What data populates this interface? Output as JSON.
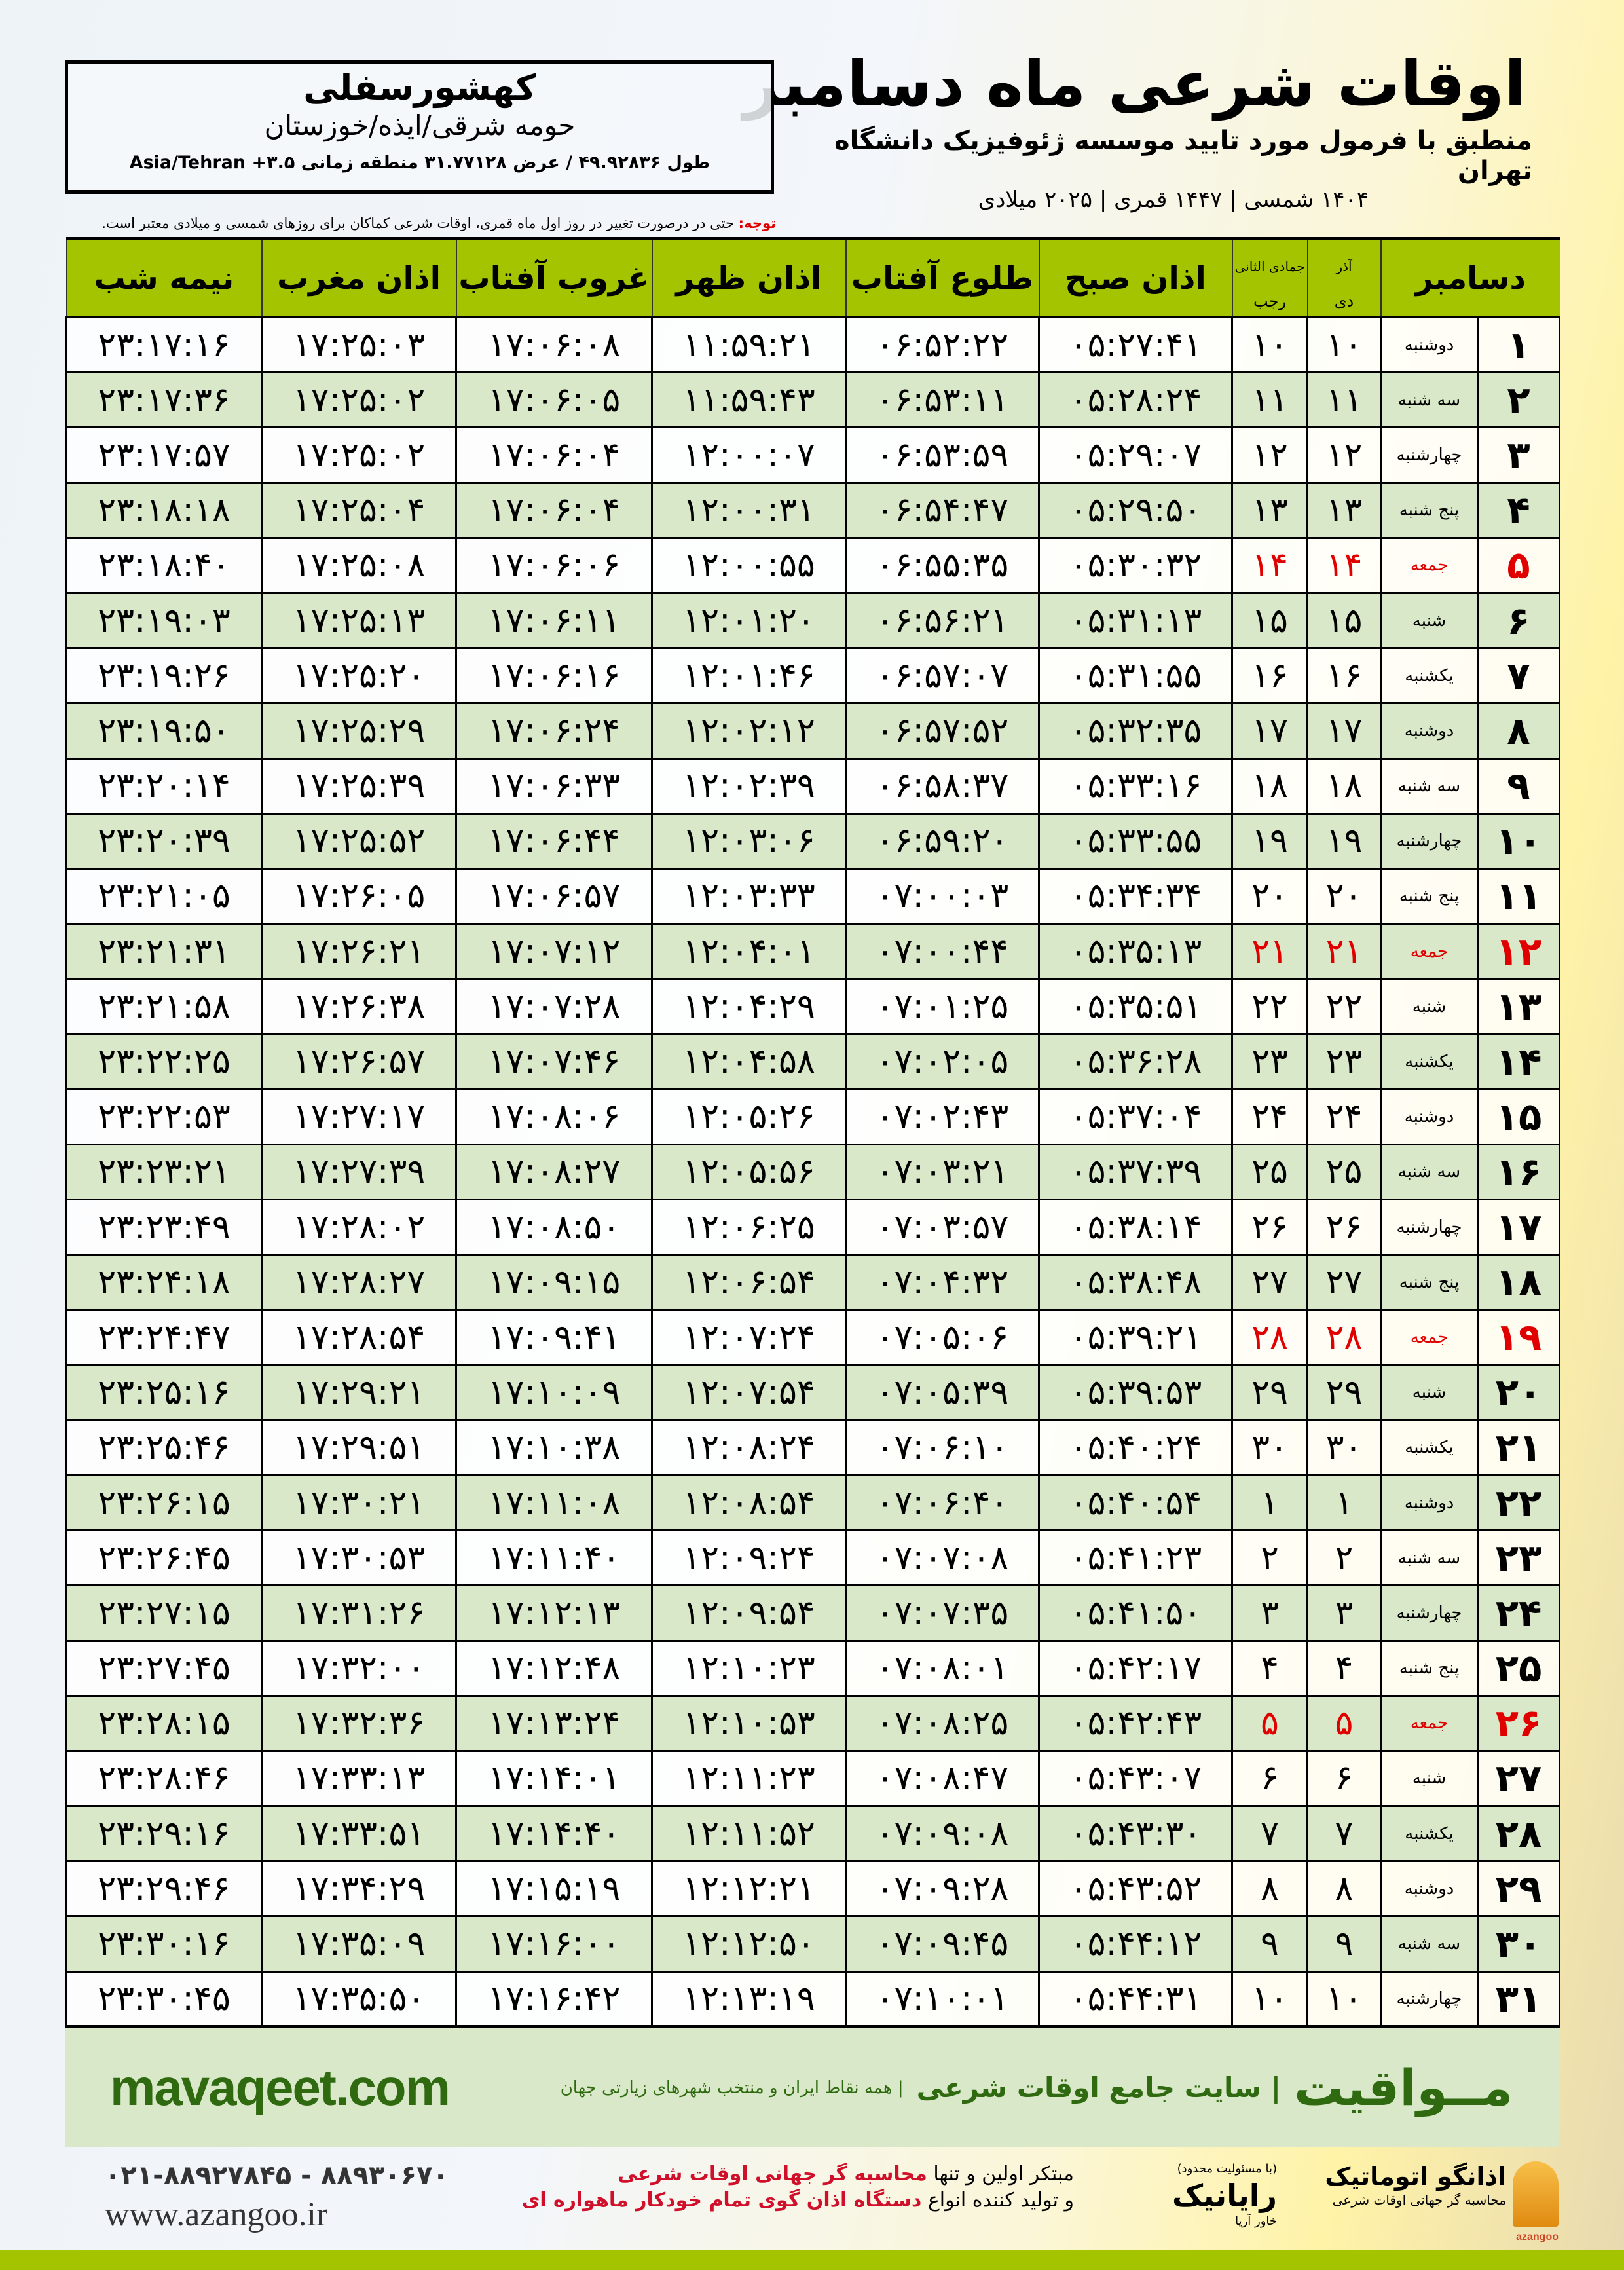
{
  "header": {
    "title": "اوقات شرعی ماه دسامبر",
    "subtitle": "منطبق با فرمول مورد تایید موسسه ژئوفیزیک دانشگاه تهران",
    "years": "۱۴۰۴ شمسی | ۱۴۴۷ قمری | ۲۰۲۵ میلادی"
  },
  "location": {
    "city": "کهشورسفلی",
    "region": "حومه شرقی/ایذه/خوزستان",
    "coords": "طول ۴۹.۹۲۸۳۶ / عرض ۳۱.۷۷۱۲۸ منطقه زمانی ۳.۵+ Asia/Tehran"
  },
  "note": {
    "label": "توجه:",
    "text": " حتی در درصورت تغییر در روز اول ماه قمری، اوقات شرعی کماکان برای روزهای شمسی و میلادی معتبر است."
  },
  "table": {
    "headers": {
      "month": "دسامبر",
      "shamsi_top": "آذر",
      "shamsi_bottom": "دی",
      "qamari_top": "جمادی الثانی",
      "qamari_bottom": "رجب",
      "fajr": "اذان صبح",
      "sunrise": "طلوع آفتاب",
      "dhuhr": "اذان ظهر",
      "sunset": "غروب آفتاب",
      "maghrib": "اذان مغرب",
      "midnight": "نیمه شب"
    },
    "holiday_color": "#e00000",
    "rows": [
      [
        "۱",
        "دوشنبه",
        "۱۰",
        "۱۰",
        "۰۵:۲۷:۴۱",
        "۰۶:۵۲:۲۲",
        "۱۱:۵۹:۲۱",
        "۱۷:۰۶:۰۸",
        "۱۷:۲۵:۰۳",
        "۲۳:۱۷:۱۶",
        false
      ],
      [
        "۲",
        "سه شنبه",
        "۱۱",
        "۱۱",
        "۰۵:۲۸:۲۴",
        "۰۶:۵۳:۱۱",
        "۱۱:۵۹:۴۳",
        "۱۷:۰۶:۰۵",
        "۱۷:۲۵:۰۲",
        "۲۳:۱۷:۳۶",
        false
      ],
      [
        "۳",
        "چهارشنبه",
        "۱۲",
        "۱۲",
        "۰۵:۲۹:۰۷",
        "۰۶:۵۳:۵۹",
        "۱۲:۰۰:۰۷",
        "۱۷:۰۶:۰۴",
        "۱۷:۲۵:۰۲",
        "۲۳:۱۷:۵۷",
        false
      ],
      [
        "۴",
        "پنج شنبه",
        "۱۳",
        "۱۳",
        "۰۵:۲۹:۵۰",
        "۰۶:۵۴:۴۷",
        "۱۲:۰۰:۳۱",
        "۱۷:۰۶:۰۴",
        "۱۷:۲۵:۰۴",
        "۲۳:۱۸:۱۸",
        false
      ],
      [
        "۵",
        "جمعه",
        "۱۴",
        "۱۴",
        "۰۵:۳۰:۳۲",
        "۰۶:۵۵:۳۵",
        "۱۲:۰۰:۵۵",
        "۱۷:۰۶:۰۶",
        "۱۷:۲۵:۰۸",
        "۲۳:۱۸:۴۰",
        true
      ],
      [
        "۶",
        "شنبه",
        "۱۵",
        "۱۵",
        "۰۵:۳۱:۱۳",
        "۰۶:۵۶:۲۱",
        "۱۲:۰۱:۲۰",
        "۱۷:۰۶:۱۱",
        "۱۷:۲۵:۱۳",
        "۲۳:۱۹:۰۳",
        false
      ],
      [
        "۷",
        "یکشنبه",
        "۱۶",
        "۱۶",
        "۰۵:۳۱:۵۵",
        "۰۶:۵۷:۰۷",
        "۱۲:۰۱:۴۶",
        "۱۷:۰۶:۱۶",
        "۱۷:۲۵:۲۰",
        "۲۳:۱۹:۲۶",
        false
      ],
      [
        "۸",
        "دوشنبه",
        "۱۷",
        "۱۷",
        "۰۵:۳۲:۳۵",
        "۰۶:۵۷:۵۲",
        "۱۲:۰۲:۱۲",
        "۱۷:۰۶:۲۴",
        "۱۷:۲۵:۲۹",
        "۲۳:۱۹:۵۰",
        false
      ],
      [
        "۹",
        "سه شنبه",
        "۱۸",
        "۱۸",
        "۰۵:۳۳:۱۶",
        "۰۶:۵۸:۳۷",
        "۱۲:۰۲:۳۹",
        "۱۷:۰۶:۳۳",
        "۱۷:۲۵:۳۹",
        "۲۳:۲۰:۱۴",
        false
      ],
      [
        "۱۰",
        "چهارشنبه",
        "۱۹",
        "۱۹",
        "۰۵:۳۳:۵۵",
        "۰۶:۵۹:۲۰",
        "۱۲:۰۳:۰۶",
        "۱۷:۰۶:۴۴",
        "۱۷:۲۵:۵۲",
        "۲۳:۲۰:۳۹",
        false
      ],
      [
        "۱۱",
        "پنج شنبه",
        "۲۰",
        "۲۰",
        "۰۵:۳۴:۳۴",
        "۰۷:۰۰:۰۳",
        "۱۲:۰۳:۳۳",
        "۱۷:۰۶:۵۷",
        "۱۷:۲۶:۰۵",
        "۲۳:۲۱:۰۵",
        false
      ],
      [
        "۱۲",
        "جمعه",
        "۲۱",
        "۲۱",
        "۰۵:۳۵:۱۳",
        "۰۷:۰۰:۴۴",
        "۱۲:۰۴:۰۱",
        "۱۷:۰۷:۱۲",
        "۱۷:۲۶:۲۱",
        "۲۳:۲۱:۳۱",
        true
      ],
      [
        "۱۳",
        "شنبه",
        "۲۲",
        "۲۲",
        "۰۵:۳۵:۵۱",
        "۰۷:۰۱:۲۵",
        "۱۲:۰۴:۲۹",
        "۱۷:۰۷:۲۸",
        "۱۷:۲۶:۳۸",
        "۲۳:۲۱:۵۸",
        false
      ],
      [
        "۱۴",
        "یکشنبه",
        "۲۳",
        "۲۳",
        "۰۵:۳۶:۲۸",
        "۰۷:۰۲:۰۵",
        "۱۲:۰۴:۵۸",
        "۱۷:۰۷:۴۶",
        "۱۷:۲۶:۵۷",
        "۲۳:۲۲:۲۵",
        false
      ],
      [
        "۱۵",
        "دوشنبه",
        "۲۴",
        "۲۴",
        "۰۵:۳۷:۰۴",
        "۰۷:۰۲:۴۳",
        "۱۲:۰۵:۲۶",
        "۱۷:۰۸:۰۶",
        "۱۷:۲۷:۱۷",
        "۲۳:۲۲:۵۳",
        false
      ],
      [
        "۱۶",
        "سه شنبه",
        "۲۵",
        "۲۵",
        "۰۵:۳۷:۳۹",
        "۰۷:۰۳:۲۱",
        "۱۲:۰۵:۵۶",
        "۱۷:۰۸:۲۷",
        "۱۷:۲۷:۳۹",
        "۲۳:۲۳:۲۱",
        false
      ],
      [
        "۱۷",
        "چهارشنبه",
        "۲۶",
        "۲۶",
        "۰۵:۳۸:۱۴",
        "۰۷:۰۳:۵۷",
        "۱۲:۰۶:۲۵",
        "۱۷:۰۸:۵۰",
        "۱۷:۲۸:۰۲",
        "۲۳:۲۳:۴۹",
        false
      ],
      [
        "۱۸",
        "پنج شنبه",
        "۲۷",
        "۲۷",
        "۰۵:۳۸:۴۸",
        "۰۷:۰۴:۳۲",
        "۱۲:۰۶:۵۴",
        "۱۷:۰۹:۱۵",
        "۱۷:۲۸:۲۷",
        "۲۳:۲۴:۱۸",
        false
      ],
      [
        "۱۹",
        "جمعه",
        "۲۸",
        "۲۸",
        "۰۵:۳۹:۲۱",
        "۰۷:۰۵:۰۶",
        "۱۲:۰۷:۲۴",
        "۱۷:۰۹:۴۱",
        "۱۷:۲۸:۵۴",
        "۲۳:۲۴:۴۷",
        true
      ],
      [
        "۲۰",
        "شنبه",
        "۲۹",
        "۲۹",
        "۰۵:۳۹:۵۳",
        "۰۷:۰۵:۳۹",
        "۱۲:۰۷:۵۴",
        "۱۷:۱۰:۰۹",
        "۱۷:۲۹:۲۱",
        "۲۳:۲۵:۱۶",
        false
      ],
      [
        "۲۱",
        "یکشنبه",
        "۳۰",
        "۳۰",
        "۰۵:۴۰:۲۴",
        "۰۷:۰۶:۱۰",
        "۱۲:۰۸:۲۴",
        "۱۷:۱۰:۳۸",
        "۱۷:۲۹:۵۱",
        "۲۳:۲۵:۴۶",
        false
      ],
      [
        "۲۲",
        "دوشنبه",
        "۱",
        "۱",
        "۰۵:۴۰:۵۴",
        "۰۷:۰۶:۴۰",
        "۱۲:۰۸:۵۴",
        "۱۷:۱۱:۰۸",
        "۱۷:۳۰:۲۱",
        "۲۳:۲۶:۱۵",
        false
      ],
      [
        "۲۳",
        "سه شنبه",
        "۲",
        "۲",
        "۰۵:۴۱:۲۳",
        "۰۷:۰۷:۰۸",
        "۱۲:۰۹:۲۴",
        "۱۷:۱۱:۴۰",
        "۱۷:۳۰:۵۳",
        "۲۳:۲۶:۴۵",
        false
      ],
      [
        "۲۴",
        "چهارشنبه",
        "۳",
        "۳",
        "۰۵:۴۱:۵۰",
        "۰۷:۰۷:۳۵",
        "۱۲:۰۹:۵۴",
        "۱۷:۱۲:۱۳",
        "۱۷:۳۱:۲۶",
        "۲۳:۲۷:۱۵",
        false
      ],
      [
        "۲۵",
        "پنج شنبه",
        "۴",
        "۴",
        "۰۵:۴۲:۱۷",
        "۰۷:۰۸:۰۱",
        "۱۲:۱۰:۲۳",
        "۱۷:۱۲:۴۸",
        "۱۷:۳۲:۰۰",
        "۲۳:۲۷:۴۵",
        false
      ],
      [
        "۲۶",
        "جمعه",
        "۵",
        "۵",
        "۰۵:۴۲:۴۳",
        "۰۷:۰۸:۲۵",
        "۱۲:۱۰:۵۳",
        "۱۷:۱۳:۲۴",
        "۱۷:۳۲:۳۶",
        "۲۳:۲۸:۱۵",
        true
      ],
      [
        "۲۷",
        "شنبه",
        "۶",
        "۶",
        "۰۵:۴۳:۰۷",
        "۰۷:۰۸:۴۷",
        "۱۲:۱۱:۲۳",
        "۱۷:۱۴:۰۱",
        "۱۷:۳۳:۱۳",
        "۲۳:۲۸:۴۶",
        false
      ],
      [
        "۲۸",
        "یکشنبه",
        "۷",
        "۷",
        "۰۵:۴۳:۳۰",
        "۰۷:۰۹:۰۸",
        "۱۲:۱۱:۵۲",
        "۱۷:۱۴:۴۰",
        "۱۷:۳۳:۵۱",
        "۲۳:۲۹:۱۶",
        false
      ],
      [
        "۲۹",
        "دوشنبه",
        "۸",
        "۸",
        "۰۵:۴۳:۵۲",
        "۰۷:۰۹:۲۸",
        "۱۲:۱۲:۲۱",
        "۱۷:۱۵:۱۹",
        "۱۷:۳۴:۲۹",
        "۲۳:۲۹:۴۶",
        false
      ],
      [
        "۳۰",
        "سه شنبه",
        "۹",
        "۹",
        "۰۵:۴۴:۱۲",
        "۰۷:۰۹:۴۵",
        "۱۲:۱۲:۵۰",
        "۱۷:۱۶:۰۰",
        "۱۷:۳۵:۰۹",
        "۲۳:۳۰:۱۶",
        false
      ],
      [
        "۳۱",
        "چهارشنبه",
        "۱۰",
        "۱۰",
        "۰۵:۴۴:۳۱",
        "۰۷:۱۰:۰۱",
        "۱۲:۱۳:۱۹",
        "۱۷:۱۶:۴۲",
        "۱۷:۳۵:۵۰",
        "۲۳:۳۰:۴۵",
        false
      ]
    ]
  },
  "banner": {
    "site": "mavaqeet.com",
    "brand": "مــواقیت",
    "tagline": "| سایت جامع اوقات شرعی",
    "tagline2": "| همه نقاط ایران و منتخب شهرهای زیارتی جهان"
  },
  "footer": {
    "phones": "۰۲۱-۸۸۹۲۷۸۴۵ - ۸۸۹۳۰۶۷۰",
    "website": "www.azangoo.ir",
    "promo_line1_a": "مبتکر اولین و تنها ",
    "promo_line1_b": "محاسبه گر جهانی اوقات شرعی",
    "promo_line2_a": "و تولید کننده انواع ",
    "promo_line2_b": "دستگاه اذان گوی تمام خودکار ماهواره ای",
    "rayanik": "رایانیک",
    "rayanik_small": "(با مسئولیت محدود)",
    "rayanik_sub": "خاور آریا",
    "azangoo": "اذانگو اتوماتیک",
    "azangoo_sub": "محاسبه گر جهانی اوقات شرعی",
    "azangoo_en": "azangoo",
    "accent": "#a4c400"
  }
}
